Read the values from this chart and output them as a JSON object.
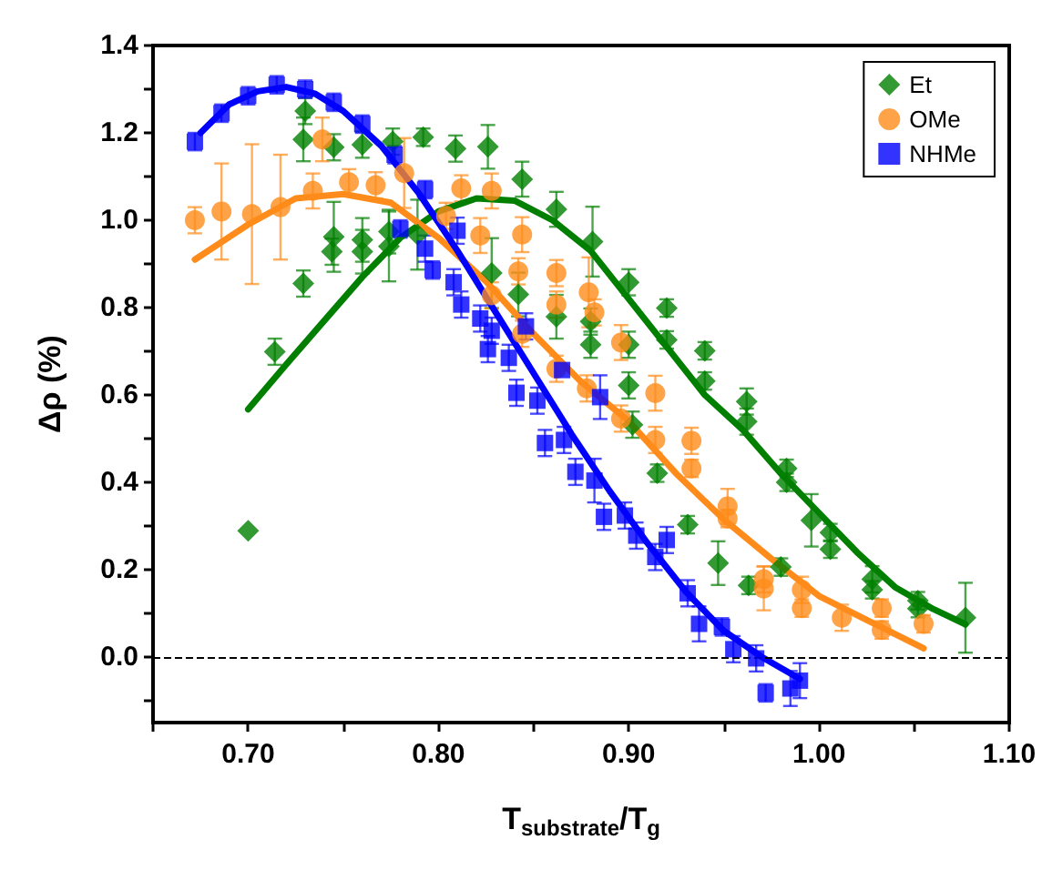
{
  "chart_data": {
    "type": "scatter",
    "xlabel": "T$_{substrate}$/T$_{g}$",
    "ylabel": "Δρ (%)",
    "legend": "top right",
    "xlim": [
      0.65,
      1.1
    ],
    "xticks": [
      {
        "value": 0.65,
        "label": null
      },
      {
        "value": 0.7,
        "label": "0.70"
      },
      {
        "value": 0.75,
        "label": null
      },
      {
        "value": 0.8,
        "label": "0.80"
      },
      {
        "value": 0.85,
        "label": null
      },
      {
        "value": 0.9,
        "label": "0.90"
      },
      {
        "value": 0.95,
        "label": null
      },
      {
        "value": 1.0,
        "label": "1.00"
      },
      {
        "value": 1.05,
        "label": null
      },
      {
        "value": 1.1,
        "label": "1.10"
      }
    ],
    "ylim": [
      -0.15,
      1.4
    ],
    "yticks": [
      {
        "value": -0.1,
        "label": null
      },
      {
        "value": 0,
        "label": "0.0"
      },
      {
        "value": 0.1,
        "label": null
      },
      {
        "value": 0.2,
        "label": "0.2"
      },
      {
        "value": 0.3,
        "label": null
      },
      {
        "value": 0.4,
        "label": "0.4"
      },
      {
        "value": 0.5,
        "label": null
      },
      {
        "value": 0.6,
        "label": "0.6"
      },
      {
        "value": 0.7,
        "label": null
      },
      {
        "value": 0.8,
        "label": "0.8"
      },
      {
        "value": 0.9,
        "label": null
      },
      {
        "value": 1.0,
        "label": "1.0"
      },
      {
        "value": 1.1,
        "label": null
      },
      {
        "value": 1.2,
        "label": "1.2"
      },
      {
        "value": 1.3,
        "label": null
      },
      {
        "value": 1.4,
        "label": "1.4"
      }
    ],
    "ref_lines": [
      {
        "axis": "y",
        "value": 0,
        "label": null,
        "color": "#000000",
        "line_style": "dashed"
      }
    ],
    "series": [
      {
        "name": "Et",
        "marker": "diamond",
        "color": "#007f00",
        "x": [
          0.7,
          0.714,
          0.729,
          0.729,
          0.73,
          0.744,
          0.745,
          0.745,
          0.76,
          0.76,
          0.76,
          0.774,
          0.774,
          0.776,
          0.789,
          0.792,
          0.809,
          0.826,
          0.828,
          0.842,
          0.844,
          0.862,
          0.862,
          0.88,
          0.88,
          0.881,
          0.9,
          0.9,
          0.9,
          0.902,
          0.915,
          0.92,
          0.92,
          0.931,
          0.94,
          0.94,
          0.947,
          0.962,
          0.962,
          0.963,
          0.98,
          0.983,
          0.983,
          0.996,
          1.006,
          1.006,
          1.028,
          1.028,
          1.052,
          1.052,
          1.077
        ],
        "values": [
          0.289,
          0.699,
          0.855,
          1.185,
          1.25,
          0.928,
          0.962,
          1.167,
          0.928,
          0.955,
          1.173,
          0.94,
          0.974,
          1.18,
          0.967,
          1.19,
          1.164,
          1.168,
          0.879,
          0.83,
          1.094,
          0.779,
          1.025,
          0.715,
          0.768,
          0.951,
          0.622,
          0.715,
          0.858,
          0.532,
          0.421,
          0.726,
          0.799,
          0.303,
          0.632,
          0.701,
          0.215,
          0.539,
          0.585,
          0.164,
          0.206,
          0.4,
          0.432,
          0.313,
          0.247,
          0.285,
          0.154,
          0.178,
          0.111,
          0.129,
          0.09
        ],
        "errors": [
          null,
          0.03,
          0.03,
          0.05,
          0.03,
          0.03,
          0.08,
          0.03,
          0.05,
          0.05,
          0.03,
          0.08,
          0.05,
          0.03,
          0.08,
          0.02,
          0.03,
          0.05,
          0.08,
          0.05,
          0.04,
          0.05,
          0.04,
          0.03,
          0.03,
          0.08,
          0.03,
          0.03,
          0.03,
          0.03,
          0.02,
          0.02,
          0.02,
          0.02,
          0.02,
          0.02,
          0.05,
          0.03,
          0.03,
          0.02,
          0.02,
          0.02,
          0.02,
          0.06,
          0.02,
          0.02,
          0.02,
          0.03,
          0.02,
          0.02,
          0.08
        ]
      },
      {
        "name": "OMe",
        "marker": "circle",
        "color": "#ff8c1a",
        "x": [
          0.672,
          0.686,
          0.702,
          0.717,
          0.734,
          0.739,
          0.753,
          0.767,
          0.782,
          0.804,
          0.812,
          0.822,
          0.828,
          0.828,
          0.842,
          0.844,
          0.844,
          0.862,
          0.862,
          0.862,
          0.878,
          0.879,
          0.882,
          0.896,
          0.896,
          0.914,
          0.914,
          0.933,
          0.933,
          0.952,
          0.952,
          0.971,
          0.971,
          0.991,
          0.991,
          1.012,
          1.033,
          1.033,
          1.055
        ],
        "values": [
          1.0,
          1.02,
          1.014,
          1.03,
          1.067,
          1.185,
          1.087,
          1.08,
          1.108,
          1.01,
          1.073,
          0.965,
          0.828,
          1.067,
          0.883,
          0.74,
          0.967,
          0.66,
          0.807,
          0.879,
          0.615,
          0.835,
          0.789,
          0.546,
          0.72,
          0.497,
          0.604,
          0.432,
          0.495,
          0.317,
          0.345,
          0.157,
          0.178,
          0.112,
          0.154,
          0.09,
          0.062,
          0.112,
          0.076
        ],
        "errors": [
          0.03,
          0.11,
          0.16,
          0.12,
          0.04,
          0.05,
          0.03,
          0.03,
          0.08,
          0.03,
          0.03,
          0.04,
          0.03,
          0.04,
          0.03,
          0.03,
          0.04,
          0.03,
          0.03,
          0.03,
          0.03,
          0.08,
          0.03,
          0.03,
          0.04,
          0.03,
          0.04,
          0.02,
          0.03,
          0.02,
          0.04,
          0.05,
          0.03,
          0.02,
          0.03,
          0.03,
          0.02,
          0.02,
          0.02
        ]
      },
      {
        "name": "NHMe",
        "marker": "square",
        "color": "#0000ff",
        "x": [
          0.672,
          0.686,
          0.7,
          0.715,
          0.73,
          0.745,
          0.76,
          0.777,
          0.78,
          0.793,
          0.793,
          0.797,
          0.808,
          0.81,
          0.812,
          0.822,
          0.826,
          0.828,
          0.837,
          0.841,
          0.846,
          0.852,
          0.856,
          0.865,
          0.866,
          0.872,
          0.882,
          0.885,
          0.887,
          0.898,
          0.904,
          0.914,
          0.92,
          0.931,
          0.937,
          0.949,
          0.955,
          0.967,
          0.972,
          0.985,
          0.99
        ],
        "values": [
          1.18,
          1.245,
          1.285,
          1.31,
          1.3,
          1.27,
          1.22,
          1.15,
          0.98,
          1.07,
          0.935,
          0.886,
          0.858,
          0.976,
          0.807,
          0.775,
          0.705,
          0.747,
          0.685,
          0.605,
          0.757,
          0.587,
          0.49,
          0.657,
          0.497,
          0.424,
          0.404,
          0.595,
          0.321,
          0.324,
          0.278,
          0.229,
          0.268,
          0.146,
          0.076,
          0.069,
          0.018,
          -0.003,
          -0.082,
          -0.072,
          -0.054
        ],
        "errors": [
          0.02,
          0.02,
          0.02,
          0.02,
          0.02,
          0.02,
          0.02,
          0.02,
          0.02,
          0.02,
          0.03,
          0.02,
          0.03,
          0.03,
          0.03,
          0.03,
          0.03,
          0.03,
          0.03,
          0.03,
          0.03,
          0.03,
          0.03,
          null,
          0.03,
          0.03,
          0.05,
          0.05,
          0.03,
          0.03,
          0.03,
          0.03,
          0.03,
          0.03,
          0.04,
          0.02,
          0.03,
          0.03,
          0.02,
          0.04,
          0.04
        ]
      },
      {
        "type": "line",
        "marker": "none",
        "color": "#007f00",
        "x": [
          0.7,
          0.72,
          0.74,
          0.76,
          0.78,
          0.8,
          0.82,
          0.84,
          0.86,
          0.88,
          0.9,
          0.92,
          0.94,
          0.96,
          0.98,
          1.0,
          1.02,
          1.04,
          1.06,
          1.077
        ],
        "values": [
          0.567,
          0.67,
          0.77,
          0.87,
          0.96,
          1.02,
          1.05,
          1.045,
          1.0,
          0.93,
          0.82,
          0.71,
          0.6,
          0.52,
          0.42,
          0.33,
          0.24,
          0.16,
          0.11,
          0.075
        ]
      },
      {
        "type": "line",
        "marker": "none",
        "color": "#ff8c1a",
        "x": [
          0.672,
          0.7,
          0.725,
          0.75,
          0.775,
          0.8,
          0.825,
          0.85,
          0.875,
          0.9,
          0.925,
          0.95,
          0.975,
          1.0,
          1.025,
          1.055
        ],
        "values": [
          0.91,
          0.99,
          1.05,
          1.06,
          1.04,
          0.96,
          0.86,
          0.74,
          0.63,
          0.54,
          0.42,
          0.315,
          0.225,
          0.14,
          0.085,
          0.02
        ]
      },
      {
        "type": "line",
        "marker": "none",
        "color": "#0000ff",
        "x": [
          0.675,
          0.69,
          0.705,
          0.72,
          0.735,
          0.75,
          0.77,
          0.79,
          0.81,
          0.83,
          0.85,
          0.87,
          0.89,
          0.91,
          0.93,
          0.95,
          0.97,
          0.99
        ],
        "values": [
          1.2,
          1.265,
          1.295,
          1.305,
          1.29,
          1.25,
          1.17,
          1.06,
          0.93,
          0.79,
          0.65,
          0.51,
          0.38,
          0.26,
          0.15,
          0.06,
          0.0,
          -0.05
        ]
      }
    ]
  }
}
